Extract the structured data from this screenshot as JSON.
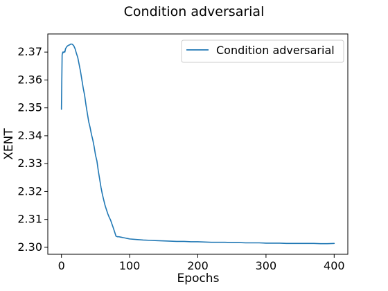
{
  "chart_data": {
    "type": "line",
    "title": "Condition adversarial",
    "xlabel": "Epochs",
    "ylabel": "XENT",
    "xlim": [
      -20,
      420
    ],
    "ylim": [
      2.2975,
      2.3765
    ],
    "x_ticks": [
      0,
      100,
      200,
      300,
      400
    ],
    "y_ticks": [
      2.3,
      2.31,
      2.32,
      2.33,
      2.34,
      2.35,
      2.36,
      2.37
    ],
    "x_tick_labels": [
      "0",
      "100",
      "200",
      "300",
      "400"
    ],
    "y_tick_labels": [
      "2.30",
      "2.31",
      "2.32",
      "2.33",
      "2.34",
      "2.35",
      "2.36",
      "2.37"
    ],
    "grid": false,
    "legend_position": "upper-right",
    "colors": {
      "series": "#1f77b4",
      "axes": "#000000",
      "background": "#ffffff"
    },
    "series": [
      {
        "name": "Condition adversarial",
        "x": [
          0,
          1,
          2,
          3,
          4,
          5,
          6,
          7,
          8,
          10,
          12,
          14,
          16,
          18,
          20,
          22,
          24,
          26,
          28,
          30,
          32,
          34,
          36,
          38,
          40,
          42,
          44,
          46,
          48,
          50,
          52,
          54,
          56,
          58,
          60,
          62,
          64,
          66,
          68,
          70,
          72,
          74,
          76,
          78,
          80,
          82,
          84,
          86,
          88,
          90,
          92,
          94,
          96,
          98,
          100,
          110,
          120,
          130,
          140,
          150,
          160,
          170,
          180,
          190,
          200,
          210,
          220,
          230,
          240,
          250,
          260,
          270,
          280,
          290,
          300,
          310,
          320,
          330,
          340,
          350,
          360,
          370,
          380,
          390,
          400
        ],
        "y": [
          2.3495,
          2.369,
          2.37,
          2.3698,
          2.3702,
          2.37,
          2.3712,
          2.3716,
          2.372,
          2.3724,
          2.3726,
          2.3729,
          2.3728,
          2.3723,
          2.3712,
          2.3695,
          2.368,
          2.3655,
          2.363,
          2.36,
          2.357,
          2.3545,
          2.351,
          2.348,
          2.345,
          2.343,
          2.3405,
          2.3385,
          2.336,
          2.333,
          2.331,
          2.3275,
          2.3245,
          2.3215,
          2.319,
          2.317,
          2.315,
          2.3135,
          2.312,
          2.3108,
          2.3098,
          2.3084,
          2.307,
          2.3055,
          2.304,
          2.3038,
          2.3038,
          2.3037,
          2.3036,
          2.3035,
          2.3034,
          2.3033,
          2.3032,
          2.3031,
          2.303,
          2.3028,
          2.3026,
          2.3025,
          2.3024,
          2.3023,
          2.3022,
          2.3021,
          2.3021,
          2.302,
          2.302,
          2.3019,
          2.3018,
          2.3018,
          2.3018,
          2.3017,
          2.3017,
          2.3016,
          2.3016,
          2.3016,
          2.3015,
          2.3015,
          2.3015,
          2.3014,
          2.3014,
          2.3014,
          2.3014,
          2.3014,
          2.3013,
          2.3013,
          2.3014
        ]
      }
    ]
  }
}
